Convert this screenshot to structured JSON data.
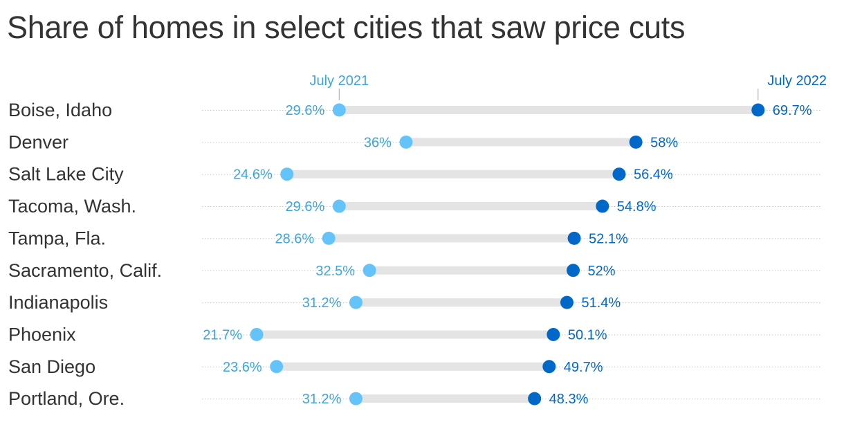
{
  "chart_data": {
    "type": "dumbbell",
    "title": "Share of homes in select cities that saw price cuts",
    "categories": [
      "Boise, Idaho",
      "Denver",
      "Salt Lake City",
      "Tacoma, Wash.",
      "Tampa, Fla.",
      "Sacramento, Calif.",
      "Indianapolis",
      "Phoenix",
      "San Diego",
      "Portland, Ore."
    ],
    "series": [
      {
        "name": "July 2021",
        "color": "#64c4f9",
        "label_color": "#3ba6db",
        "values": [
          29.6,
          36,
          24.6,
          29.6,
          28.6,
          32.5,
          31.2,
          21.7,
          23.6,
          31.2
        ],
        "labels": [
          "29.6%",
          "36%",
          "24.6%",
          "29.6%",
          "28.6%",
          "32.5%",
          "31.2%",
          "21.7%",
          "23.6%",
          "31.2%"
        ]
      },
      {
        "name": "July 2022",
        "color": "#0068c9",
        "label_color": "#0068c9",
        "values": [
          69.7,
          58,
          56.4,
          54.8,
          52.1,
          52,
          51.4,
          50.1,
          49.7,
          48.3
        ],
        "labels": [
          "69.7%",
          "58%",
          "56.4%",
          "54.8%",
          "52.1%",
          "52%",
          "51.4%",
          "50.1%",
          "49.7%",
          "48.3%"
        ]
      }
    ],
    "xlim": [
      16,
      76
    ],
    "grid": false,
    "legend": "direct labels above first row"
  }
}
